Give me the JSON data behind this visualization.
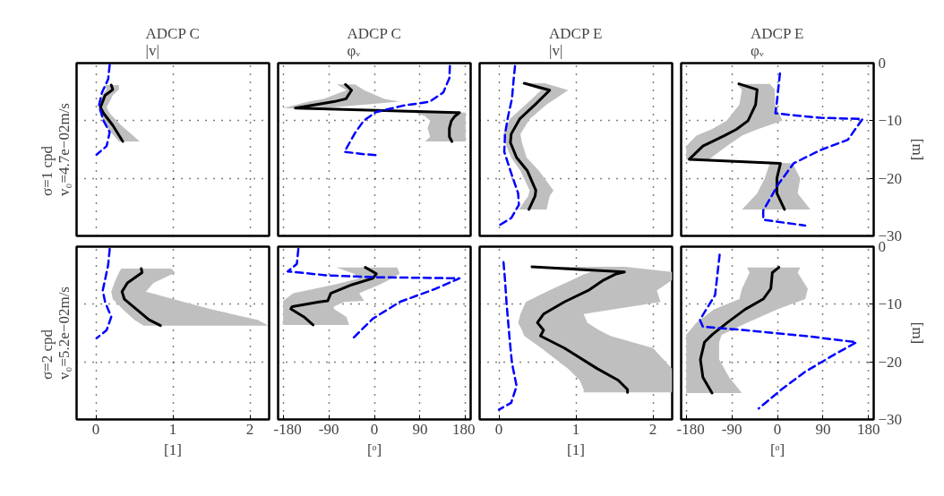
{
  "chart_data": [
    {
      "type": "line",
      "orientation": "horizontal",
      "title": "ADCP C\n|v|",
      "ylabel": "σ=1 cpd\nv₀=4.7e−02m/s",
      "xlim": [
        -0.25,
        2.25
      ],
      "xticks": [
        0,
        1,
        2
      ],
      "ylim": [
        -30,
        0
      ],
      "yticks": [
        0,
        -10,
        -20,
        -30
      ],
      "grid": true,
      "tick_labels": false,
      "series": [
        {
          "color": "#000000",
          "line_style": "solid",
          "x": [
            -3.8,
            -4.6,
            -5.6,
            -7.7,
            -8.7,
            -10.8,
            -13.6
          ],
          "values": [
            0.2,
            0.22,
            0.12,
            0.06,
            0.1,
            0.22,
            0.35
          ],
          "lower": [
            0.12,
            0.14,
            0.08,
            0.04,
            0.06,
            0.12,
            0.3
          ],
          "upper": [
            0.3,
            0.3,
            0.22,
            0.14,
            0.18,
            0.33,
            0.57
          ]
        },
        {
          "color": "#0000ff",
          "line_style": "dashed",
          "x": [
            -0.3,
            -2.8,
            -5.1,
            -7.4,
            -10,
            -12,
            -14.4,
            -15.9
          ],
          "values": [
            0.18,
            0.16,
            0.08,
            0.04,
            0.1,
            0.18,
            0.14,
            0.01
          ]
        }
      ]
    },
    {
      "type": "line",
      "orientation": "horizontal",
      "title": "ADCP C\nφᵥ",
      "xlim": [
        -190,
        190
      ],
      "xticks": [
        -180,
        -90,
        0,
        90,
        180
      ],
      "ylim": [
        -30,
        0
      ],
      "yticks": [
        0,
        -10,
        -20,
        -30
      ],
      "grid": true,
      "tick_labels": false,
      "series": [
        {
          "color": "#000000",
          "line_style": "solid",
          "x": [
            -3.7,
            -4.7,
            -6.2,
            -6.7,
            -7.8,
            -8.6,
            -9.2,
            -10,
            -11.3,
            -12.8,
            -13.6
          ],
          "values": [
            -57,
            -45,
            -56,
            -80,
            -156,
            168,
            159,
            152,
            148,
            148,
            153
          ],
          "lower": [
            -74,
            -55,
            -100,
            -130,
            -180,
            80,
            100,
            110,
            105,
            110,
            100
          ],
          "upper": [
            -38,
            -20,
            20,
            50,
            -100,
            180,
            180,
            180,
            180,
            180,
            180
          ]
        },
        {
          "color": "#0000ff",
          "line_style": "dashed",
          "x": [
            -0.5,
            -2.6,
            -5.1,
            -6.7,
            -7.4,
            -8.5,
            -10,
            -12.1,
            -15.4,
            -15.8,
            -16
          ],
          "values": [
            149,
            148,
            136,
            109,
            56,
            3,
            -21,
            -38,
            -59,
            -21,
            6
          ]
        }
      ]
    },
    {
      "type": "line",
      "orientation": "horizontal",
      "title": "ADCP E\n|v|",
      "xlim": [
        -0.25,
        2.25
      ],
      "xticks": [
        0,
        1,
        2
      ],
      "ylim": [
        -30,
        0
      ],
      "yticks": [
        0,
        -10,
        -20,
        -30
      ],
      "grid": true,
      "tick_labels": false,
      "series": [
        {
          "color": "#000000",
          "line_style": "solid",
          "x": [
            -3.5,
            -4.7,
            -7.2,
            -9.7,
            -12.3,
            -13.8,
            -16.4,
            -18.7,
            -22.1,
            -23.1,
            -25.4
          ],
          "values": [
            0.33,
            0.66,
            0.47,
            0.27,
            0.16,
            0.15,
            0.23,
            0.37,
            0.48,
            0.47,
            0.39
          ],
          "lower": [
            0.28,
            0.55,
            0.35,
            0.14,
            0.06,
            0.08,
            0.16,
            0.28,
            0.4,
            0.38,
            0.26
          ],
          "upper": [
            0.6,
            0.9,
            0.62,
            0.4,
            0.28,
            0.3,
            0.36,
            0.52,
            0.71,
            0.66,
            0.62
          ]
        },
        {
          "color": "#0000ff",
          "line_style": "dashed",
          "x": [
            -0.5,
            -3.1,
            -6.2,
            -9.2,
            -12.3,
            -15.4,
            -19.5,
            -22.6,
            -24.6,
            -26.9,
            -28.2
          ],
          "values": [
            0.21,
            0.19,
            0.17,
            0.12,
            0.08,
            0.07,
            0.17,
            0.25,
            0.26,
            0.16,
            0.0
          ]
        }
      ]
    },
    {
      "type": "line",
      "orientation": "horizontal",
      "title": "ADCP E\nφᵥ",
      "ylabel": "[m]",
      "xlim": [
        -190,
        190
      ],
      "xticks": [
        -180,
        -90,
        0,
        90,
        180
      ],
      "ylim": [
        -30,
        0
      ],
      "yticks": [
        0,
        -10,
        -20,
        -30
      ],
      "grid": true,
      "tick_labels": "y",
      "series": [
        {
          "color": "#000000",
          "line_style": "solid",
          "x": [
            -3.6,
            -4.6,
            -7.2,
            -10,
            -11.5,
            -12.6,
            -14.4,
            -16.7,
            -17.4,
            -20,
            -22.6,
            -25.4
          ],
          "values": [
            -76,
            -40,
            -43,
            -58,
            -81,
            -105,
            -147,
            -174,
            6,
            -1,
            -1,
            14
          ],
          "lower": [
            -80,
            -70,
            -75,
            -100,
            -130,
            -160,
            -180,
            -180,
            -15,
            -25,
            -40,
            -70
          ],
          "upper": [
            -15,
            -5,
            -5,
            10,
            -40,
            -70,
            -100,
            -135,
            30,
            45,
            40,
            65
          ]
        },
        {
          "color": "#0000ff",
          "line_style": "dashed",
          "x": [
            -1.8,
            -6.7,
            -8.7,
            -9,
            -9.5,
            -9.7,
            -13.3,
            -15.1,
            -17.4,
            -21,
            -25.6,
            -27.2,
            -28.2
          ],
          "values": [
            5,
            -1,
            -4,
            26,
            85,
            168,
            139,
            85,
            32,
            2,
            -28,
            -28,
            55
          ]
        }
      ]
    },
    {
      "type": "line",
      "orientation": "horizontal",
      "ylabel": "σ=2 cpd\nv₀=5.2e−02m/s",
      "xlabel": "[1]",
      "xlim": [
        -0.25,
        2.25
      ],
      "xticks": [
        0,
        1,
        2
      ],
      "ylim": [
        -30,
        0
      ],
      "yticks": [
        0,
        -10,
        -20,
        -30
      ],
      "grid": true,
      "tick_labels": "x",
      "series": [
        {
          "color": "#000000",
          "line_style": "solid",
          "x": [
            -3.8,
            -4.5,
            -6.3,
            -7.8,
            -9.1,
            -10.9,
            -12.7,
            -13.7
          ],
          "values": [
            0.59,
            0.6,
            0.41,
            0.34,
            0.37,
            0.53,
            0.69,
            0.84
          ],
          "lower": [
            0.33,
            0.3,
            0.24,
            0.2,
            0.22,
            0.35,
            0.5,
            0.62
          ],
          "upper": [
            0.98,
            1.03,
            0.75,
            0.65,
            1.0,
            1.5,
            2.1,
            2.24
          ]
        },
        {
          "color": "#0000ff",
          "line_style": "dashed",
          "x": [
            -0.4,
            -3.2,
            -7.6,
            -9.6,
            -12.2,
            -14.5,
            -15.9
          ],
          "values": [
            0.18,
            0.16,
            0.09,
            0.12,
            0.2,
            0.14,
            0.01
          ]
        }
      ]
    },
    {
      "type": "line",
      "orientation": "horizontal",
      "xlabel": "[ᵒ]",
      "xlim": [
        -190,
        190
      ],
      "xticks": [
        -180,
        -90,
        0,
        90,
        180
      ],
      "ylim": [
        -30,
        0
      ],
      "yticks": [
        0,
        -10,
        -20,
        -30
      ],
      "grid": true,
      "tick_labels": "x",
      "series": [
        {
          "color": "#000000",
          "line_style": "solid",
          "x": [
            -3.6,
            -4.7,
            -5.5,
            -6.6,
            -8.1,
            -9.4,
            -9.6,
            -10.4,
            -10.8,
            -12.2,
            -13.6
          ],
          "values": [
            -18,
            4,
            -3,
            -44,
            -86,
            -92,
            -109,
            -162,
            -165,
            -139,
            -121
          ],
          "lower": [
            -75,
            -40,
            -30,
            -80,
            -160,
            -180,
            -180,
            -180,
            -180,
            -180,
            -180
          ],
          "upper": [
            45,
            50,
            35,
            10,
            -30,
            -20,
            -60,
            -80,
            -80,
            -55,
            -50
          ]
        },
        {
          "color": "#0000ff",
          "line_style": "dashed",
          "x": [
            -0.4,
            -3,
            -4.3,
            -5,
            -5.3,
            -5.4,
            -5.5,
            -7.3,
            -9.6,
            -12.5,
            -15.8
          ],
          "values": [
            -150,
            -153,
            -171,
            -91,
            -3,
            86,
            168,
            121,
            50,
            -3,
            -41
          ]
        }
      ]
    },
    {
      "type": "line",
      "orientation": "horizontal",
      "xlabel": "[1]",
      "xlim": [
        -0.25,
        2.25
      ],
      "xticks": [
        0,
        1,
        2
      ],
      "ylim": [
        -30,
        0
      ],
      "yticks": [
        0,
        -10,
        -20,
        -30
      ],
      "grid": true,
      "tick_labels": "x",
      "series": [
        {
          "color": "#000000",
          "line_style": "solid",
          "x": [
            -3.5,
            -4.4,
            -4.8,
            -5.8,
            -7.6,
            -9.6,
            -11.7,
            -13.2,
            -14.5,
            -15.5,
            -17.6,
            -21.2,
            -23.2,
            -24.8,
            -25.3
          ],
          "values": [
            0.43,
            1.63,
            1.51,
            1.36,
            1.16,
            0.85,
            0.58,
            0.5,
            0.58,
            0.54,
            0.85,
            1.28,
            1.55,
            1.67,
            1.67
          ],
          "lower": [
            0.42,
            1.2,
            1.1,
            0.95,
            0.65,
            0.35,
            0.28,
            0.25,
            0.3,
            0.33,
            0.55,
            0.9,
            1.05,
            1.1,
            1.1
          ],
          "upper": [
            1.64,
            2.25,
            2.25,
            2.25,
            2.05,
            2.1,
            1.1,
            1.15,
            1.3,
            1.45,
            2.0,
            2.25,
            2.25,
            2.25,
            2.25
          ]
        },
        {
          "color": "#0000ff",
          "line_style": "dashed",
          "x": [
            -2.7,
            -5.8,
            -9.9,
            -16.1,
            -20.2,
            -24.2,
            -27.1,
            -28.3
          ],
          "values": [
            0.06,
            0.08,
            0.1,
            0.14,
            0.17,
            0.23,
            0.16,
            0.0
          ]
        }
      ]
    },
    {
      "type": "line",
      "orientation": "horizontal",
      "ylabel": "[m]",
      "xlabel": "[ᵒ]",
      "xlim": [
        -190,
        190
      ],
      "xticks": [
        -180,
        -90,
        0,
        90,
        180
      ],
      "ylim": [
        -30,
        0
      ],
      "yticks": [
        0,
        -10,
        -20,
        -30
      ],
      "grid": true,
      "series": [
        {
          "color": "#000000",
          "line_style": "solid",
          "x": [
            -3.6,
            -4.5,
            -7.3,
            -9.1,
            -10.9,
            -13.2,
            -15.3,
            -16.6,
            -19.6,
            -22.7,
            -25.4
          ],
          "values": [
            3,
            -10,
            -13,
            -28,
            -64,
            -99,
            -129,
            -144,
            -152,
            -147,
            -129
          ],
          "lower": [
            -60,
            -55,
            -70,
            -75,
            -125,
            -160,
            -180,
            -180,
            -180,
            -180,
            -180
          ],
          "upper": [
            45,
            40,
            60,
            55,
            0,
            -60,
            -110,
            -115,
            -115,
            -95,
            -70
          ]
        },
        {
          "color": "#0000ff",
          "line_style": "dashed",
          "x": [
            -1.4,
            -8.4,
            -12.7,
            -13.9,
            -14.5,
            -15.5,
            -16.6,
            -18.6,
            -21.7,
            -24.8,
            -28.1
          ],
          "values": [
            -114,
            -123,
            -153,
            -147,
            -64,
            55,
            156,
            115,
            55,
            8,
            -37
          ]
        }
      ]
    }
  ]
}
